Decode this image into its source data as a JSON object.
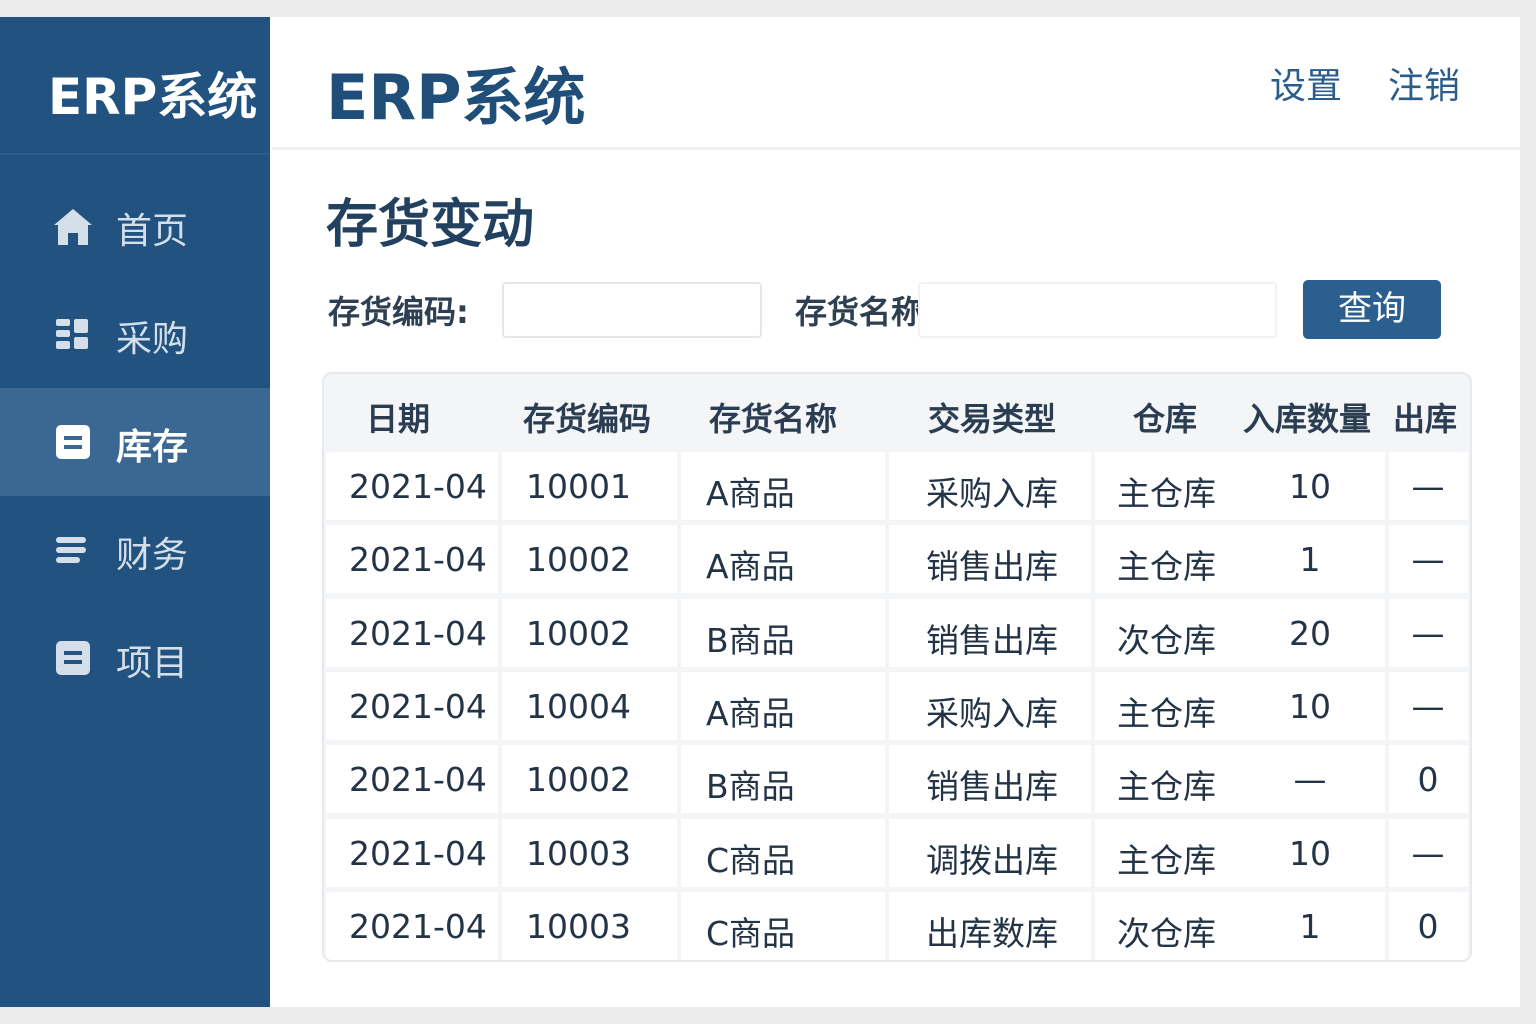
{
  "sidebar": {
    "brand": "ERP系统",
    "nav": [
      "首页",
      "采购",
      "库存",
      "财务",
      "项目"
    ],
    "active": 2
  },
  "header": {
    "title": "ERP系统",
    "links": [
      "设置",
      "注销"
    ]
  },
  "page": {
    "title": "存货变动",
    "filters": [
      "存货编码:",
      "存货名称:"
    ],
    "button": "查询"
  },
  "table": {
    "columns": [
      "日期",
      "存货编码",
      "存货名称",
      "交易类型",
      "仓库",
      "入库数量",
      "出库"
    ],
    "rows": [
      [
        "2021-04",
        "10001",
        "A商品",
        "采购入库",
        "主仓库",
        "10",
        "—"
      ],
      [
        "2021-04",
        "10002",
        "A商品",
        "销售出库",
        "主仓库",
        "1",
        "—"
      ],
      [
        "2021-04",
        "10002",
        "B商品",
        "销售出库",
        "次仓库",
        "20",
        "—"
      ],
      [
        "2021-04",
        "10004",
        "A商品",
        "采购入库",
        "主仓库",
        "10",
        "—"
      ],
      [
        "2021-04",
        "10002",
        "B商品",
        "销售出库",
        "主仓库",
        "—",
        "0"
      ],
      [
        "2021-04",
        "10003",
        "C商品",
        "调拨出库",
        "主仓库",
        "10",
        "—"
      ],
      [
        "2021-04",
        "10003",
        "C商品",
        "出库数库",
        "次仓库",
        "1",
        "0"
      ]
    ]
  }
}
